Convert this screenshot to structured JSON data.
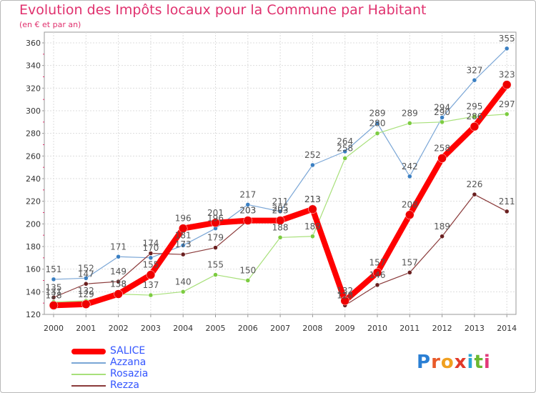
{
  "chart_data": {
    "type": "line",
    "title": "Evolution des Impôts locaux pour la Commune par Habitant",
    "subtitle": "(en € et par an)",
    "x": [
      "2000",
      "2001",
      "2002",
      "2003",
      "2004",
      "2005",
      "2006",
      "2007",
      "2008",
      "2009",
      "2010",
      "2011",
      "2012",
      "2013",
      "2014"
    ],
    "ylim": [
      120,
      360
    ],
    "yticks": [
      120,
      140,
      160,
      180,
      200,
      220,
      240,
      260,
      280,
      300,
      320,
      340,
      360
    ],
    "grid": true,
    "series": [
      {
        "name": "Azzana",
        "color": "#7aa6d6",
        "marker": "#3a7fc2",
        "width": 1.2,
        "radius": 3,
        "values": [
          151,
          152,
          171,
          170,
          181,
          196,
          217,
          211,
          252,
          264,
          289,
          242,
          294,
          327,
          355
        ],
        "labels": [
          "151",
          "152",
          "171",
          "170",
          "181",
          "196",
          "217",
          "211",
          "252",
          "264",
          "289",
          "242",
          "294",
          "327",
          "355"
        ]
      },
      {
        "name": "Rosazia",
        "color": "#a8e07a",
        "marker": "#7ccc40",
        "width": 1.2,
        "radius": 3,
        "values": [
          131,
          132,
          138,
          137,
          140,
          155,
          150,
          188,
          189,
          258,
          280,
          289,
          290,
          295,
          297
        ],
        "labels": [
          "131",
          "132",
          "138",
          "137",
          "140",
          "155",
          "150",
          "188",
          "189",
          "258",
          "280",
          "289",
          "290",
          "295",
          "297"
        ]
      },
      {
        "name": "Rezza",
        "color": "#8a3a3a",
        "marker": "#6a1f1f",
        "width": 1.2,
        "radius": 3,
        "values": [
          135,
          147,
          149,
          174,
          173,
          179,
          203,
          205,
          213,
          128,
          146,
          157,
          189,
          226,
          211
        ],
        "labels": [
          "135",
          "147",
          "149",
          "174",
          "173",
          "179",
          "203",
          "205",
          "213",
          "128",
          "146",
          "157",
          "189",
          "226",
          "211"
        ]
      },
      {
        "name": "SALICE",
        "color": "#ff0000",
        "marker": "#ee0000",
        "width": 8,
        "radius": 6,
        "values": [
          128,
          129,
          138,
          155,
          196,
          201,
          203,
          203,
          213,
          132,
          157,
          208,
          258,
          286,
          323
        ],
        "labels": [
          "128",
          "129",
          "138",
          "155",
          "196",
          "201",
          "203",
          "203",
          "213",
          "132",
          "157",
          "208",
          "258",
          "286",
          "323"
        ]
      }
    ],
    "legend": {
      "position": "bottom-left",
      "order": [
        "SALICE",
        "Azzana",
        "Rosazia",
        "Rezza"
      ]
    }
  },
  "brand": {
    "logo_text": "Proxiti"
  }
}
